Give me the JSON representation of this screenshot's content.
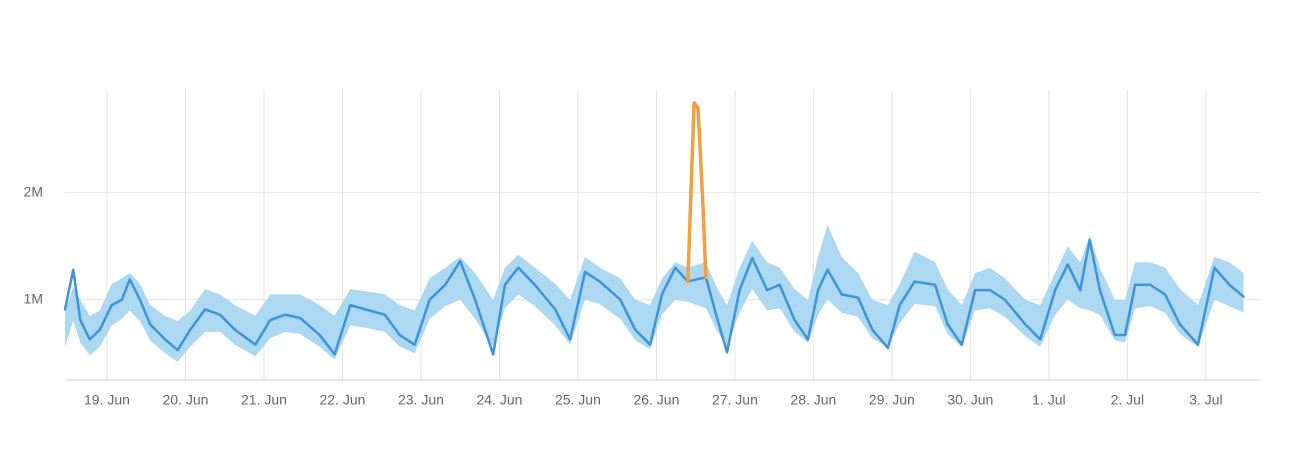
{
  "chart_data": {
    "type": "line",
    "xlim": [
      -0.535,
      14.69
    ],
    "xticks": [
      {
        "value": 0,
        "label": "19. Jun"
      },
      {
        "value": 1,
        "label": "20. Jun"
      },
      {
        "value": 2,
        "label": "21. Jun"
      },
      {
        "value": 3,
        "label": "22. Jun"
      },
      {
        "value": 4,
        "label": "23. Jun"
      },
      {
        "value": 5,
        "label": "24. Jun"
      },
      {
        "value": 6,
        "label": "25. Jun"
      },
      {
        "value": 7,
        "label": "26. Jun"
      },
      {
        "value": 8,
        "label": "27. Jun"
      },
      {
        "value": 9,
        "label": "28. Jun"
      },
      {
        "value": 10,
        "label": "29. Jun"
      },
      {
        "value": 11,
        "label": "30. Jun"
      },
      {
        "value": 12,
        "label": "1. Jul"
      },
      {
        "value": 13,
        "label": "2. Jul"
      },
      {
        "value": 14,
        "label": "3. Jul"
      }
    ],
    "ylim": [
      250000,
      2960000
    ],
    "yticks": [
      {
        "value": 1000000,
        "label": "1M"
      },
      {
        "value": 2000000,
        "label": "2M"
      }
    ],
    "grid": true,
    "x": [
      -0.535,
      -0.43,
      -0.34,
      -0.22,
      -0.09,
      0.06,
      0.19,
      0.29,
      0.42,
      0.55,
      0.74,
      0.9,
      1.06,
      1.25,
      1.44,
      1.63,
      1.89,
      2.08,
      2.27,
      2.46,
      2.71,
      2.9,
      3.1,
      3.29,
      3.54,
      3.73,
      3.92,
      4.11,
      4.31,
      4.5,
      4.69,
      4.92,
      5.07,
      5.24,
      5.45,
      5.71,
      5.9,
      6.09,
      6.28,
      6.54,
      6.73,
      6.92,
      7.07,
      7.24,
      7.4,
      7.63,
      7.78,
      7.9,
      8.06,
      8.22,
      8.41,
      8.57,
      8.76,
      8.93,
      9.06,
      9.18,
      9.36,
      9.57,
      9.75,
      9.95,
      10.1,
      10.29,
      10.55,
      10.71,
      10.89,
      11.06,
      11.25,
      11.44,
      11.7,
      11.89,
      12.08,
      12.24,
      12.4,
      12.52,
      12.65,
      12.84,
      12.97,
      13.1,
      13.29,
      13.48,
      13.67,
      13.9,
      14.11,
      14.3,
      14.48
    ],
    "band": {
      "color": "#acd8f2",
      "lower": [
        560000,
        800000,
        600000,
        480000,
        560000,
        760000,
        820000,
        900000,
        800000,
        620000,
        500000,
        420000,
        560000,
        700000,
        700000,
        580000,
        470000,
        640000,
        700000,
        680000,
        560000,
        440000,
        760000,
        740000,
        700000,
        560000,
        500000,
        820000,
        940000,
        1000000,
        820000,
        560000,
        920000,
        1050000,
        940000,
        760000,
        580000,
        1000000,
        960000,
        820000,
        620000,
        540000,
        860000,
        1000000,
        980000,
        920000,
        700000,
        560000,
        880000,
        1100000,
        900000,
        920000,
        700000,
        600000,
        860000,
        1000000,
        880000,
        840000,
        640000,
        560000,
        780000,
        960000,
        940000,
        680000,
        560000,
        900000,
        920000,
        840000,
        660000,
        560000,
        860000,
        1000000,
        920000,
        900000,
        860000,
        620000,
        600000,
        920000,
        940000,
        880000,
        680000,
        560000,
        1000000,
        940000,
        880000
      ],
      "upper": [
        900000,
        1120000,
        1000000,
        850000,
        900000,
        1150000,
        1200000,
        1250000,
        1150000,
        950000,
        850000,
        800000,
        900000,
        1100000,
        1050000,
        950000,
        850000,
        1050000,
        1050000,
        1050000,
        950000,
        850000,
        1100000,
        1080000,
        1050000,
        950000,
        900000,
        1200000,
        1300000,
        1400000,
        1250000,
        1000000,
        1300000,
        1420000,
        1300000,
        1150000,
        1000000,
        1400000,
        1300000,
        1200000,
        1000000,
        950000,
        1200000,
        1350000,
        1300000,
        1350000,
        1100000,
        950000,
        1300000,
        1550000,
        1350000,
        1300000,
        1100000,
        1000000,
        1400000,
        1700000,
        1400000,
        1250000,
        1000000,
        950000,
        1150000,
        1450000,
        1350000,
        1100000,
        950000,
        1250000,
        1300000,
        1200000,
        1000000,
        950000,
        1250000,
        1500000,
        1350000,
        1600000,
        1300000,
        1000000,
        1000000,
        1350000,
        1350000,
        1300000,
        1100000,
        950000,
        1400000,
        1350000,
        1250000
      ]
    },
    "series": [
      {
        "color": "#3f94d9",
        "values": [
          910000,
          1280000,
          810000,
          630000,
          720000,
          950000,
          1000000,
          1190000,
          1000000,
          770000,
          630000,
          530000,
          720000,
          910000,
          860000,
          720000,
          580000,
          810000,
          860000,
          830000,
          670000,
          490000,
          950000,
          910000,
          860000,
          670000,
          580000,
          1000000,
          1140000,
          1360000,
          1000000,
          490000,
          1140000,
          1300000,
          1140000,
          910000,
          630000,
          1260000,
          1170000,
          1000000,
          720000,
          580000,
          1050000,
          1300000,
          1170000,
          1210000,
          810000,
          510000,
          1090000,
          1390000,
          1090000,
          1140000,
          810000,
          630000,
          1090000,
          1280000,
          1050000,
          1020000,
          720000,
          550000,
          950000,
          1170000,
          1140000,
          770000,
          580000,
          1090000,
          1090000,
          1000000,
          770000,
          630000,
          1090000,
          1330000,
          1090000,
          1560000,
          1090000,
          670000,
          670000,
          1140000,
          1140000,
          1050000,
          770000,
          580000,
          1300000,
          1140000,
          1030000
        ]
      },
      {
        "color": "#f0a040",
        "x": [
          7.4,
          7.48,
          7.53,
          7.59,
          7.63
        ],
        "values": [
          1170000,
          2840000,
          2790000,
          1930000,
          1210000
        ]
      }
    ]
  }
}
